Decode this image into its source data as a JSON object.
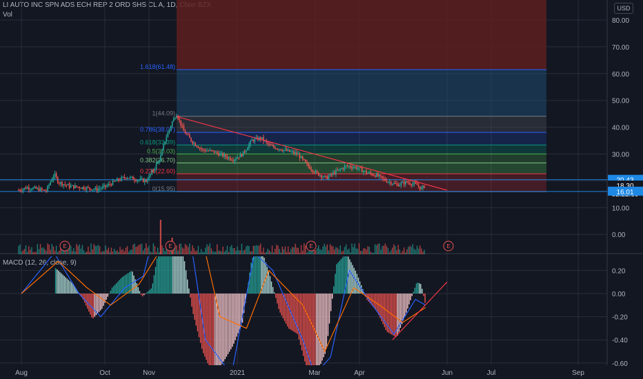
{
  "header": {
    "symbol_line": "LI AUTO INC SPN ADS ECH REP 2 ORD SHS CL A, 1D, Cboe BZX",
    "volume_label": "Vol",
    "currency_badge": "USD"
  },
  "colors": {
    "background": "#131722",
    "up": "#26a69a",
    "down": "#ef5350",
    "macd_line": "#2962ff",
    "signal_line": "#ff6d00",
    "grid": "#2a2e39",
    "fib_blue": "#1e88e5",
    "trendline": "#f23645"
  },
  "events": [
    "E",
    "E",
    "E",
    "E"
  ],
  "chart_data": [
    {
      "type": "line",
      "panel": "price",
      "title": "LI AUTO INC SPN ADS ECH REP 2 ORD SHS CL A, 1D, Cboe BZX",
      "x_ticks": [
        "Aug",
        "Oct",
        "Nov",
        "2021",
        "Mar",
        "Apr",
        "Jun",
        "Jul",
        "Sep"
      ],
      "y_ticks": [
        "80.00",
        "70.00",
        "60.00",
        "50.00",
        "40.00",
        "30.00",
        "20.00",
        "10.00",
        "0.00"
      ],
      "ylim": [
        -2,
        84
      ],
      "grid": true,
      "price_labels": [
        {
          "text": "20.43",
          "value": 20.43,
          "color": "#1e88e5"
        },
        {
          "text": "18.30",
          "value": 18.3,
          "color": "#131722"
        },
        {
          "text": "02:22:30",
          "value": 16.9,
          "color": "#131722"
        },
        {
          "text": "16.01",
          "value": 16.01,
          "color": "#1e88e5"
        }
      ],
      "fibonacci": [
        {
          "label": "1.618(61.48)",
          "value": 61.48,
          "color": "#2962ff"
        },
        {
          "label": "1(44.09)",
          "value": 44.09,
          "color": "#787b86"
        },
        {
          "label": "0.786(38.07)",
          "value": 38.07,
          "color": "#2962ff"
        },
        {
          "label": "0.618(33.39)",
          "value": 33.39,
          "color": "#089981"
        },
        {
          "label": "0.5(30.03)",
          "value": 30.03,
          "color": "#4caf50"
        },
        {
          "label": "0.382(26.70)",
          "value": 26.7,
          "color": "#81c784"
        },
        {
          "label": "0.236(22.60)",
          "value": 22.6,
          "color": "#f23645"
        },
        {
          "label": "0(15.95)",
          "value": 15.95,
          "color": "#787b86"
        }
      ],
      "series": [
        {
          "name": "",
          "values": [
            [
              "Jul 30",
              16.5
            ],
            [
              "Aug 5",
              17.5
            ],
            [
              "Aug 12",
              17.0
            ],
            [
              "Aug 19",
              16.2
            ],
            [
              "Aug 25",
              22.5
            ],
            [
              "Aug 28",
              19.5
            ],
            [
              "Sep 5",
              18.0
            ],
            [
              "Sep 15",
              17.5
            ],
            [
              "Sep 25",
              16.8
            ],
            [
              "Oct 2",
              18.0
            ],
            [
              "Oct 9",
              20.0
            ],
            [
              "Oct 16",
              21.5
            ],
            [
              "Oct 23",
              20.5
            ],
            [
              "Oct 30",
              20.0
            ],
            [
              "Nov 4",
              24.0
            ],
            [
              "Nov 9",
              29.0
            ],
            [
              "Nov 12",
              35.0
            ],
            [
              "Nov 17",
              42.0
            ],
            [
              "Nov 20",
              45.0
            ],
            [
              "Nov 25",
              38.5
            ],
            [
              "Dec 1",
              34.5
            ],
            [
              "Dec 8",
              31.5
            ],
            [
              "Dec 15",
              31.0
            ],
            [
              "Dec 22",
              29.5
            ],
            [
              "Dec 29",
              28.0
            ],
            [
              "Jan 5",
              30.0
            ],
            [
              "Jan 12",
              35.0
            ],
            [
              "Jan 19",
              36.0
            ],
            [
              "Jan 26",
              33.0
            ],
            [
              "Feb 2",
              32.0
            ],
            [
              "Feb 9",
              31.0
            ],
            [
              "Feb 16",
              30.0
            ],
            [
              "Feb 23",
              26.0
            ],
            [
              "Mar 2",
              23.0
            ],
            [
              "Mar 9",
              21.0
            ],
            [
              "Mar 16",
              23.5
            ],
            [
              "Mar 23",
              25.5
            ],
            [
              "Mar 30",
              25.0
            ],
            [
              "Apr 6",
              23.0
            ],
            [
              "Apr 13",
              22.0
            ],
            [
              "Apr 20",
              20.0
            ],
            [
              "Apr 27",
              18.5
            ],
            [
              "May 4",
              19.5
            ],
            [
              "May 11",
              18.5
            ],
            [
              "May 14",
              17.0
            ],
            [
              "May 17",
              18.3
            ]
          ]
        }
      ],
      "trendline": [
        [
          "Nov 20",
          44.0
        ],
        [
          "Jun 1",
          16.5
        ]
      ]
    },
    {
      "type": "bar",
      "panel": "volume",
      "series": [
        {
          "name": "",
          "values": [
            [
              "Nov 9",
              25
            ],
            [
              "Nov 17",
              12
            ]
          ]
        }
      ]
    },
    {
      "type": "bar",
      "panel": "macd",
      "title": "MACD (12, 26, close, 9)",
      "y_ticks": [
        "0.20",
        "0.00",
        "-0.20",
        "-0.40",
        "-0.60"
      ],
      "ylim": [
        -0.62,
        0.36
      ],
      "grid": true,
      "histogram": [
        [
          "Aug 26",
          0.22
        ],
        [
          "Sep 8",
          0.08
        ],
        [
          "Sep 15",
          -0.05
        ],
        [
          "Sep 22",
          -0.22
        ],
        [
          "Sep 29",
          -0.13
        ],
        [
          "Oct 6",
          0.05
        ],
        [
          "Oct 13",
          0.14
        ],
        [
          "Oct 20",
          0.2
        ],
        [
          "Oct 27",
          -0.03
        ],
        [
          "Nov 3",
          0.05
        ],
        [
          "Nov 10",
          0.55
        ],
        [
          "Nov 17",
          0.8
        ],
        [
          "Nov 24",
          0.4
        ],
        [
          "Dec 1",
          -0.15
        ],
        [
          "Dec 8",
          -0.5
        ],
        [
          "Dec 15",
          -0.7
        ],
        [
          "Dec 22",
          -0.6
        ],
        [
          "Dec 29",
          -0.45
        ],
        [
          "Jan 5",
          -0.25
        ],
        [
          "Jan 12",
          0.3
        ],
        [
          "Jan 19",
          0.4
        ],
        [
          "Jan 26",
          0.15
        ],
        [
          "Feb 2",
          -0.15
        ],
        [
          "Feb 9",
          -0.3
        ],
        [
          "Feb 16",
          -0.35
        ],
        [
          "Feb 23",
          -0.65
        ],
        [
          "Mar 2",
          -0.7
        ],
        [
          "Mar 9",
          -0.5
        ],
        [
          "Mar 16",
          0.25
        ],
        [
          "Mar 23",
          0.35
        ],
        [
          "Mar 30",
          0.18
        ],
        [
          "Apr 6",
          -0.05
        ],
        [
          "Apr 13",
          -0.15
        ],
        [
          "Apr 20",
          -0.33
        ],
        [
          "Apr 27",
          -0.38
        ],
        [
          "May 4",
          -0.15
        ],
        [
          "May 11",
          0.1
        ],
        [
          "May 14",
          0.08
        ],
        [
          "May 17",
          -0.1
        ]
      ],
      "macd_line": [
        [
          "Aug 1",
          0.0
        ],
        [
          "Aug 25",
          0.35
        ],
        [
          "Sep 12",
          0.0
        ],
        [
          "Sep 28",
          -0.2
        ],
        [
          "Oct 15",
          0.05
        ],
        [
          "Oct 28",
          0.15
        ],
        [
          "Nov 10",
          0.8
        ],
        [
          "Nov 22",
          1.1
        ],
        [
          "Dec 10",
          -0.4
        ],
        [
          "Dec 28",
          -0.7
        ],
        [
          "Jan 14",
          0.35
        ],
        [
          "Jan 28",
          0.2
        ],
        [
          "Feb 20",
          -0.4
        ],
        [
          "Mar 1",
          -0.7
        ],
        [
          "Mar 12",
          -0.55
        ],
        [
          "Mar 25",
          0.2
        ],
        [
          "Apr 10",
          -0.1
        ],
        [
          "Apr 25",
          -0.35
        ],
        [
          "May 10",
          -0.05
        ],
        [
          "May 17",
          -0.1
        ]
      ],
      "signal_line": [
        [
          "Aug 1",
          0.0
        ],
        [
          "Aug 28",
          0.28
        ],
        [
          "Sep 18",
          0.05
        ],
        [
          "Oct 5",
          -0.1
        ],
        [
          "Oct 25",
          0.08
        ],
        [
          "Nov 15",
          0.5
        ],
        [
          "Nov 30",
          0.9
        ],
        [
          "Dec 20",
          -0.2
        ],
        [
          "Jan 8",
          -0.3
        ],
        [
          "Jan 25",
          0.2
        ],
        [
          "Feb 20",
          -0.1
        ],
        [
          "Mar 8",
          -0.5
        ],
        [
          "Mar 28",
          0.05
        ],
        [
          "Apr 15",
          -0.1
        ],
        [
          "May 1",
          -0.25
        ],
        [
          "May 17",
          -0.12
        ]
      ],
      "trendline": [
        [
          "Apr 24",
          -0.4
        ],
        [
          "Jun 1",
          0.1
        ]
      ]
    }
  ]
}
